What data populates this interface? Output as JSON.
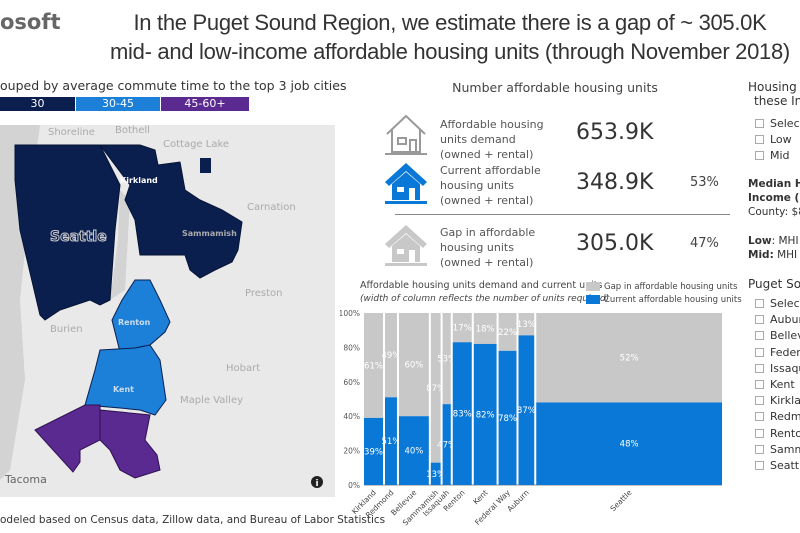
{
  "logo": "osoft",
  "title_line1": "In the Puget Sound Region, we estimate there is a gap of ~ 305.0K",
  "title_line2": "mid- and low-income affordable housing units (through November 2018)",
  "map": {
    "legend_title": "ouped by average commute time to the top 3 job cities",
    "legend": [
      {
        "label": "30",
        "color": "#0b1f4f"
      },
      {
        "label": "30-45",
        "color": "#1c7fd8"
      },
      {
        "label": "45-60+",
        "color": "#5b2a91"
      }
    ],
    "places": [
      "Shoreline",
      "Bothell",
      "Cottage Lake",
      "Carnation",
      "Preston",
      "Burien",
      "Hobart",
      "Maple Valley",
      "Tacoma"
    ],
    "city_labels": [
      "Seattle",
      "Kirkland",
      "Sammamish",
      "Renton",
      "Kent"
    ],
    "info_icon": "info-icon"
  },
  "source": "odeled based on Census data, Zillow data, and Bureau of Labor Statistics",
  "kpis": {
    "title": "Number affordable housing units",
    "items": [
      {
        "label": [
          "Affordable housing",
          "units demand",
          "(owned + rental)"
        ],
        "value": "653.9K",
        "pct": "",
        "icon": "house-outline-icon"
      },
      {
        "label": [
          "Current affordable",
          "housing units",
          "(owned + rental)"
        ],
        "value": "348.9K",
        "pct": "53%",
        "icon": "house-blue-icon"
      },
      {
        "label": [
          "Gap in affordable",
          "housing units",
          "(owned + rental)"
        ],
        "value": "305.0K",
        "pct": "47%",
        "icon": "house-gray-icon"
      }
    ]
  },
  "chart_data": {
    "type": "bar",
    "title": "Affordable housing units demand and current units",
    "subtitle": "(width of column reflects the number of units required)",
    "legend": [
      {
        "name": "Gap in affordable housing units",
        "color": "#c8c8c8"
      },
      {
        "name": "Current affordable housing units",
        "color": "#0a78d7"
      }
    ],
    "legend_placement": "top-right",
    "yticks": [
      "0%",
      "20%",
      "40%",
      "60%",
      "80%",
      "100%"
    ],
    "ylim": [
      0,
      100
    ],
    "categories": [
      "Kirkland",
      "Redmond",
      "Bellevue",
      "Sammamish",
      "Issaquah",
      "Renton",
      "Kent",
      "Federal Way",
      "Auburn",
      "Seattle"
    ],
    "demand_relative": [
      35,
      22,
      55,
      18,
      15,
      35,
      42,
      33,
      29,
      342
    ],
    "series": [
      {
        "name": "Current affordable housing units",
        "values": [
          39,
          51,
          40,
          13,
          47,
          83,
          82,
          78,
          87,
          48
        ]
      },
      {
        "name": "Gap in affordable housing units",
        "values": [
          61,
          49,
          60,
          87,
          53,
          17,
          18,
          22,
          13,
          52
        ]
      }
    ]
  },
  "right_panel": {
    "income_title": [
      "Housing a",
      "these Inc"
    ],
    "income_options": [
      "Select",
      "Low",
      "Mid"
    ],
    "mhi_title": [
      "Median H",
      "Income (M"
    ],
    "county": "County: $8",
    "low_key": "Low",
    ":low": "",
    "low_text": ": MHI -",
    "mid_key": "Mid:",
    "mid_text": " MHI 6",
    "city_title": "Puget Sou",
    "city_options": [
      "Select",
      "Aubur",
      "Bellev",
      "Feder",
      "Issaqu",
      "Kent",
      "Kirklar",
      "Redm",
      "Rento",
      "Samm",
      "Seattle"
    ]
  }
}
